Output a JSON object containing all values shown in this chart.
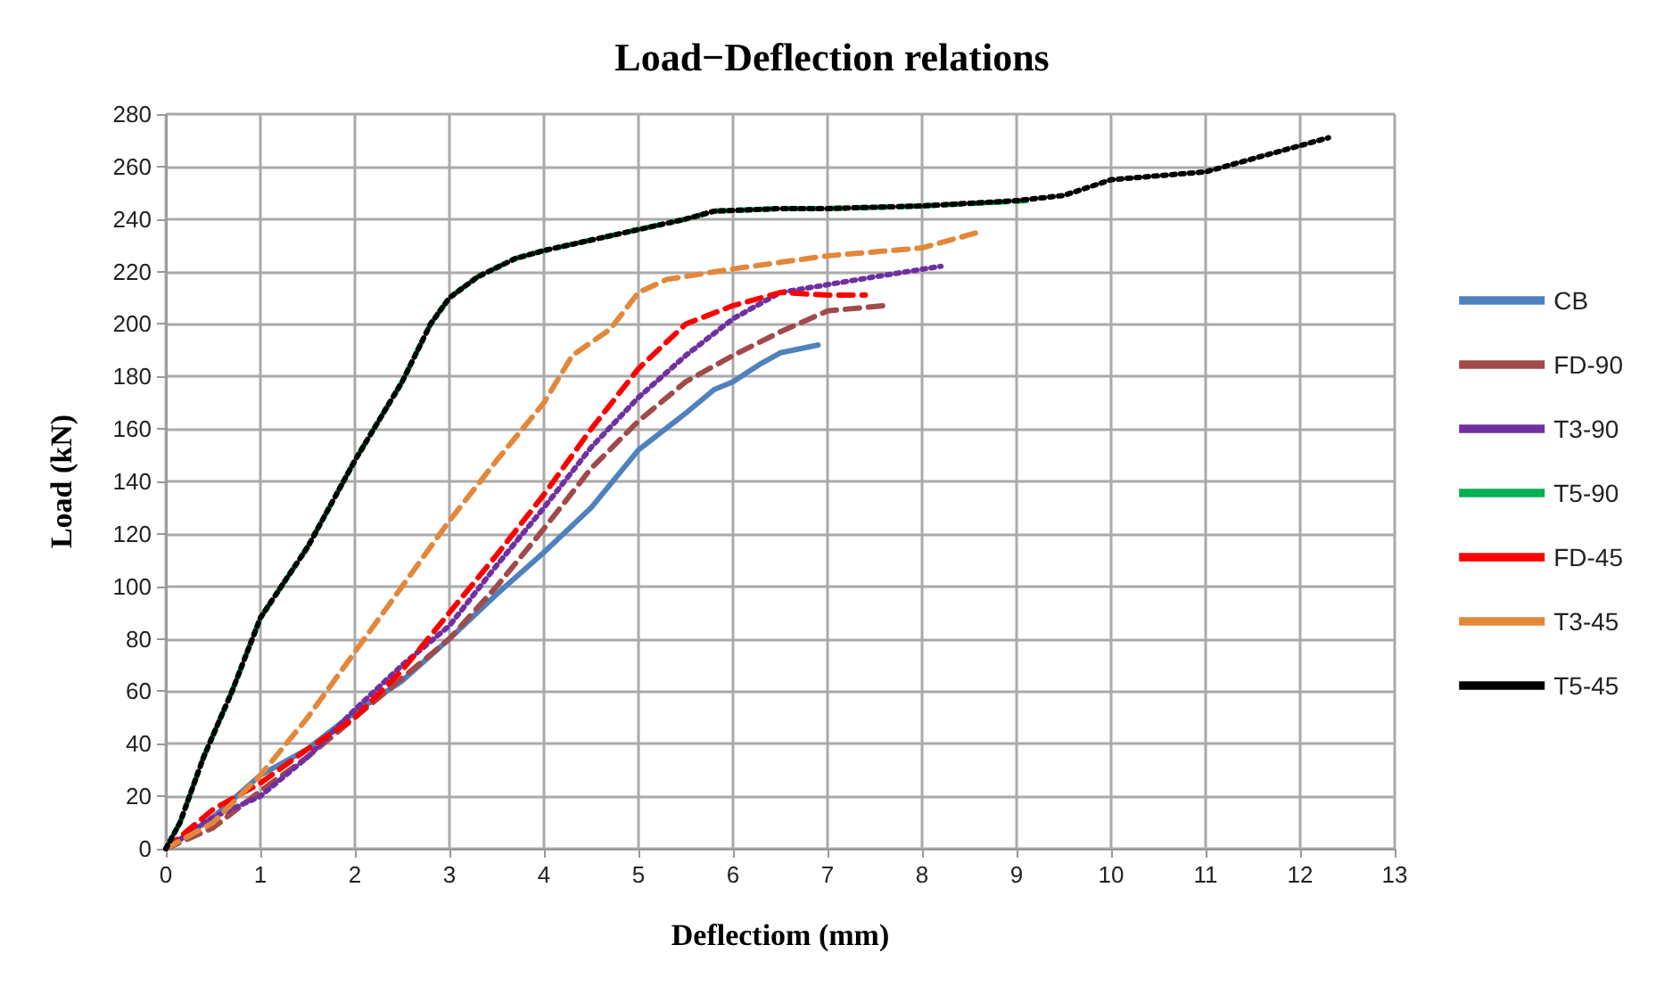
{
  "chart_data": {
    "type": "line",
    "title": "Load−Deflection relations",
    "xlabel": "Deflectiom (mm)",
    "ylabel": "Load (kN)",
    "xlim": [
      0,
      13
    ],
    "xticks": [
      0,
      1,
      2,
      3,
      4,
      5,
      6,
      7,
      8,
      9,
      10,
      11,
      12,
      13
    ],
    "ylim": [
      0,
      280
    ],
    "yticks": [
      0,
      20,
      40,
      60,
      80,
      100,
      120,
      140,
      160,
      180,
      200,
      220,
      240,
      260,
      280
    ],
    "grid": true,
    "legend": "right",
    "marker": "none",
    "series": [
      {
        "name": "CB",
        "color": "#4f81bd",
        "line_style": "solid",
        "x": [
          0,
          0.5,
          1,
          1.5,
          2,
          2.5,
          3,
          3.5,
          4,
          4.5,
          5,
          5.5,
          5.8,
          6,
          6.3,
          6.5,
          6.9
        ],
        "values": [
          0,
          12,
          28,
          38,
          52,
          64,
          80,
          97,
          113,
          130,
          152,
          166,
          175,
          178,
          185,
          189,
          192
        ]
      },
      {
        "name": "FD-90",
        "color": "#a04a4a",
        "line_style": "dashed",
        "x": [
          0,
          0.5,
          1,
          1.5,
          2,
          2.5,
          3,
          3.5,
          4,
          4.5,
          5,
          5.5,
          6,
          6.5,
          7,
          7.6
        ],
        "values": [
          0,
          8,
          22,
          35,
          50,
          65,
          80,
          100,
          122,
          145,
          163,
          178,
          188,
          197,
          205,
          207
        ]
      },
      {
        "name": "T3-90",
        "color": "#7030a0",
        "line_style": "dotted",
        "x": [
          0,
          0.5,
          1,
          1.5,
          2,
          2.5,
          3,
          3.5,
          4,
          4.5,
          5,
          5.5,
          6,
          6.5,
          7,
          7.5,
          8.2
        ],
        "values": [
          0,
          12,
          20,
          35,
          53,
          70,
          85,
          108,
          130,
          153,
          172,
          188,
          202,
          212,
          215,
          218,
          222
        ]
      },
      {
        "name": "T5-90",
        "color": "#00b050",
        "line_style": "dashed",
        "x": [
          0,
          0.15,
          0.4,
          0.7,
          1,
          1.5,
          2,
          2.5,
          2.8,
          3,
          3.3,
          3.7,
          4,
          4.5,
          5,
          5.5,
          5.8,
          6.5,
          7,
          8,
          9.1
        ],
        "values": [
          0,
          10,
          35,
          60,
          88,
          115,
          148,
          178,
          200,
          210,
          218,
          225,
          228,
          232,
          236,
          240,
          243,
          244,
          244,
          245,
          247
        ]
      },
      {
        "name": "FD-45",
        "color": "#ff0000",
        "line_style": "dashed",
        "x": [
          0,
          0.5,
          1,
          1.5,
          2,
          2.5,
          3,
          3.5,
          4,
          4.5,
          5,
          5.5,
          6,
          6.5,
          7,
          7.4
        ],
        "values": [
          0,
          15,
          25,
          38,
          50,
          68,
          90,
          112,
          135,
          160,
          183,
          200,
          207,
          212,
          211,
          211
        ]
      },
      {
        "name": "T3-45",
        "color": "#e3873a",
        "line_style": "dashed",
        "x": [
          0,
          0.5,
          1,
          1.5,
          2,
          2.5,
          3,
          3.5,
          4,
          4.3,
          4.7,
          5,
          5.3,
          6,
          7,
          8,
          8.6
        ],
        "values": [
          0,
          10,
          28,
          50,
          75,
          100,
          125,
          148,
          170,
          188,
          198,
          212,
          217,
          221,
          226,
          229,
          235
        ]
      },
      {
        "name": "T5-45",
        "color": "#000000",
        "line_style": "dotted",
        "x": [
          0,
          0.15,
          0.4,
          0.7,
          1,
          1.5,
          2,
          2.5,
          2.8,
          3,
          3.3,
          3.7,
          4,
          4.5,
          5,
          5.5,
          5.8,
          6.5,
          7,
          8,
          9,
          9.5,
          10,
          11,
          11.5,
          12.3
        ],
        "values": [
          0,
          10,
          35,
          60,
          88,
          115,
          148,
          178,
          200,
          210,
          218,
          225,
          228,
          232,
          236,
          240,
          243,
          244,
          244,
          245,
          247,
          249,
          255,
          258,
          263,
          271
        ]
      }
    ]
  }
}
